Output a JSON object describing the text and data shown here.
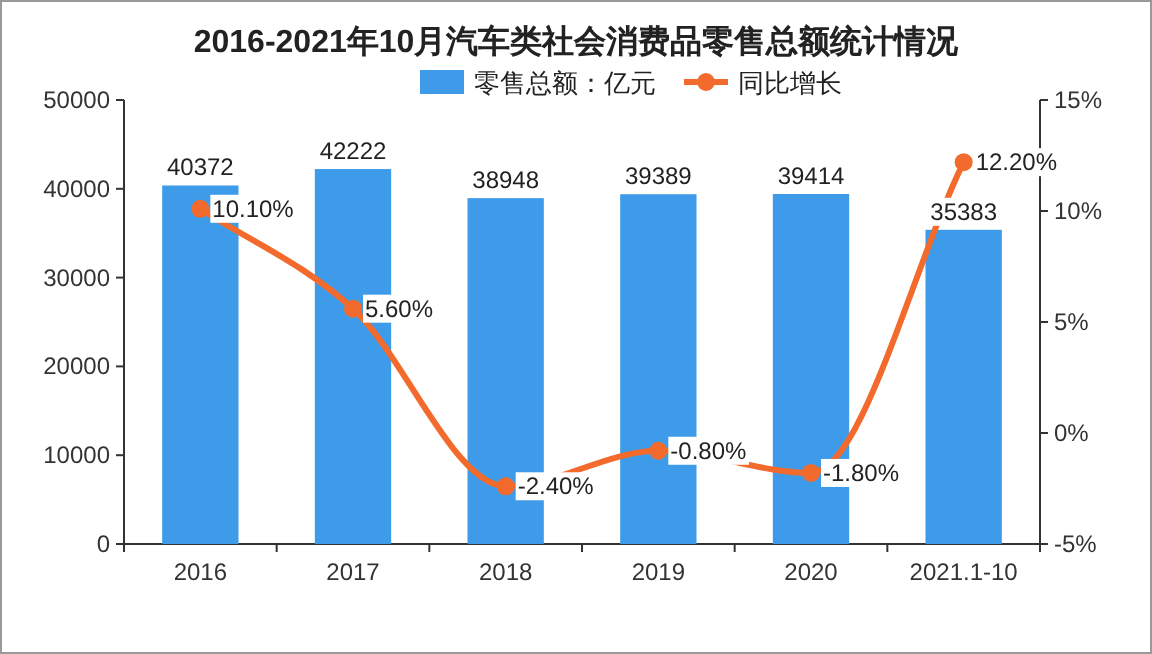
{
  "chart_data": {
    "type": "bar",
    "title": "2016-2021年10月汽车类社会消费品零售总额统计情况",
    "categories": [
      "2016",
      "2017",
      "2018",
      "2019",
      "2020",
      "2021.1-10"
    ],
    "series": [
      {
        "name": "零售总额：亿元",
        "color": "#3d9be9",
        "values": [
          40372,
          42222,
          38948,
          39389,
          39414,
          35383
        ],
        "value_labels": [
          "40372",
          "42222",
          "38948",
          "39389",
          "39414",
          "35383"
        ]
      },
      {
        "name": "同比增长",
        "type": "line",
        "axis": "y2",
        "color": "#f26b2d",
        "marker": "circle",
        "values": [
          10.1,
          5.6,
          -2.4,
          -0.8,
          -1.8,
          12.2
        ],
        "value_labels": [
          "10.10%",
          "5.60%",
          "-2.40%",
          "-0.80%",
          "-1.80%",
          "12.20%"
        ]
      }
    ],
    "ylim": [
      0,
      50000
    ],
    "yticks": [
      0,
      10000,
      20000,
      30000,
      40000,
      50000
    ],
    "y2lim": [
      -5,
      15
    ],
    "y2ticks": [
      {
        "value": -5,
        "label": "-5%"
      },
      {
        "value": 0,
        "label": "0%"
      },
      {
        "value": 5,
        "label": "5%"
      },
      {
        "value": 10,
        "label": "10%"
      },
      {
        "value": 15,
        "label": "15%"
      }
    ],
    "legend": "top"
  }
}
